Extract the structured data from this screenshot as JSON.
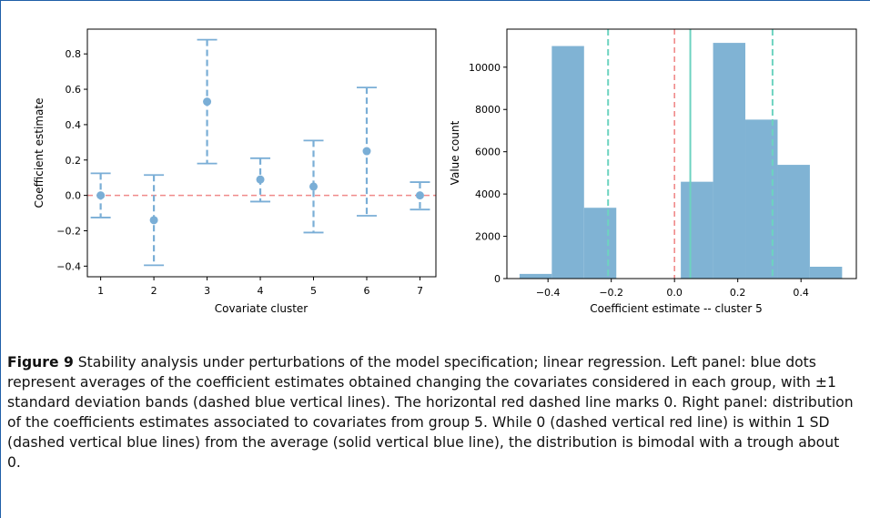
{
  "left_panel": {
    "chart_data": {
      "type": "scatter",
      "xlabel": "Covariate cluster",
      "ylabel": "Coefficient estimate",
      "xlim": [
        0.75,
        7.3
      ],
      "ylim": [
        -0.46,
        0.94
      ],
      "xticks": [
        1,
        2,
        3,
        4,
        5,
        6,
        7
      ],
      "xtick_labels": [
        "1",
        "2",
        "3",
        "4",
        "5",
        "6",
        "7"
      ],
      "yticks": [
        -0.4,
        -0.2,
        0.0,
        0.2,
        0.4,
        0.6,
        0.8
      ],
      "ytick_labels": [
        "−0.4",
        "−0.2",
        "0.0",
        "0.2",
        "0.4",
        "0.6",
        "0.8"
      ],
      "series": [
        {
          "x": [
            1,
            2,
            3,
            4,
            5,
            6,
            7
          ],
          "y": [
            0.0,
            -0.14,
            0.53,
            0.09,
            0.05,
            0.25,
            0.0
          ],
          "err_lower": [
            -0.125,
            -0.395,
            0.18,
            -0.035,
            -0.21,
            -0.115,
            -0.08
          ],
          "err_upper": [
            0.125,
            0.115,
            0.88,
            0.21,
            0.31,
            0.61,
            0.075
          ]
        }
      ],
      "reference_line": 0,
      "colors": {
        "point": "#7aaed6",
        "error": "#7aaed6",
        "reference": "#f08a8a"
      }
    }
  },
  "right_panel": {
    "chart_data": {
      "type": "bar",
      "subtype": "histogram",
      "xlabel": "Coefficient estimate -- cluster 5",
      "ylabel": "Value count",
      "xlim": [
        -0.53,
        0.575
      ],
      "ylim": [
        0,
        11800
      ],
      "xticks": [
        -0.4,
        -0.2,
        0.0,
        0.2,
        0.4
      ],
      "xtick_labels": [
        "−0.4",
        "−0.2",
        "0.0",
        "0.2",
        "0.4"
      ],
      "yticks": [
        0,
        2000,
        4000,
        6000,
        8000,
        10000
      ],
      "ytick_labels": [
        "0",
        "2000",
        "4000",
        "6000",
        "8000",
        "10000"
      ],
      "bin_edges": [
        -0.49,
        -0.388,
        -0.286,
        -0.184,
        -0.082,
        0.02,
        0.122,
        0.224,
        0.326,
        0.428,
        0.53
      ],
      "counts": [
        220,
        11000,
        3350,
        0,
        0,
        4580,
        11150,
        7520,
        5380,
        560
      ],
      "lines": {
        "zero": 0.0,
        "mean": 0.05,
        "sd_low": -0.21,
        "sd_high": 0.31
      },
      "colors": {
        "bar": "#80b3d4",
        "zero": "#f08a8a",
        "mean": "#6dd3c0",
        "sd": "#6dd3c0"
      }
    }
  },
  "caption": {
    "label": "Figure 9",
    "text": "Stability analysis under perturbations of the model specification; linear regression. Left panel: blue dots represent averages of the coefficient estimates obtained changing the covariates considered in each group, with ±1 standard deviation bands (dashed blue vertical lines). The horizontal red dashed line marks 0. Right panel: distribution of the coefficients estimates associated to covariates from group 5. While 0 (dashed vertical red line) is within 1 SD (dashed vertical blue lines) from the average (solid vertical blue line), the distribution is bimodal with a trough about 0."
  }
}
